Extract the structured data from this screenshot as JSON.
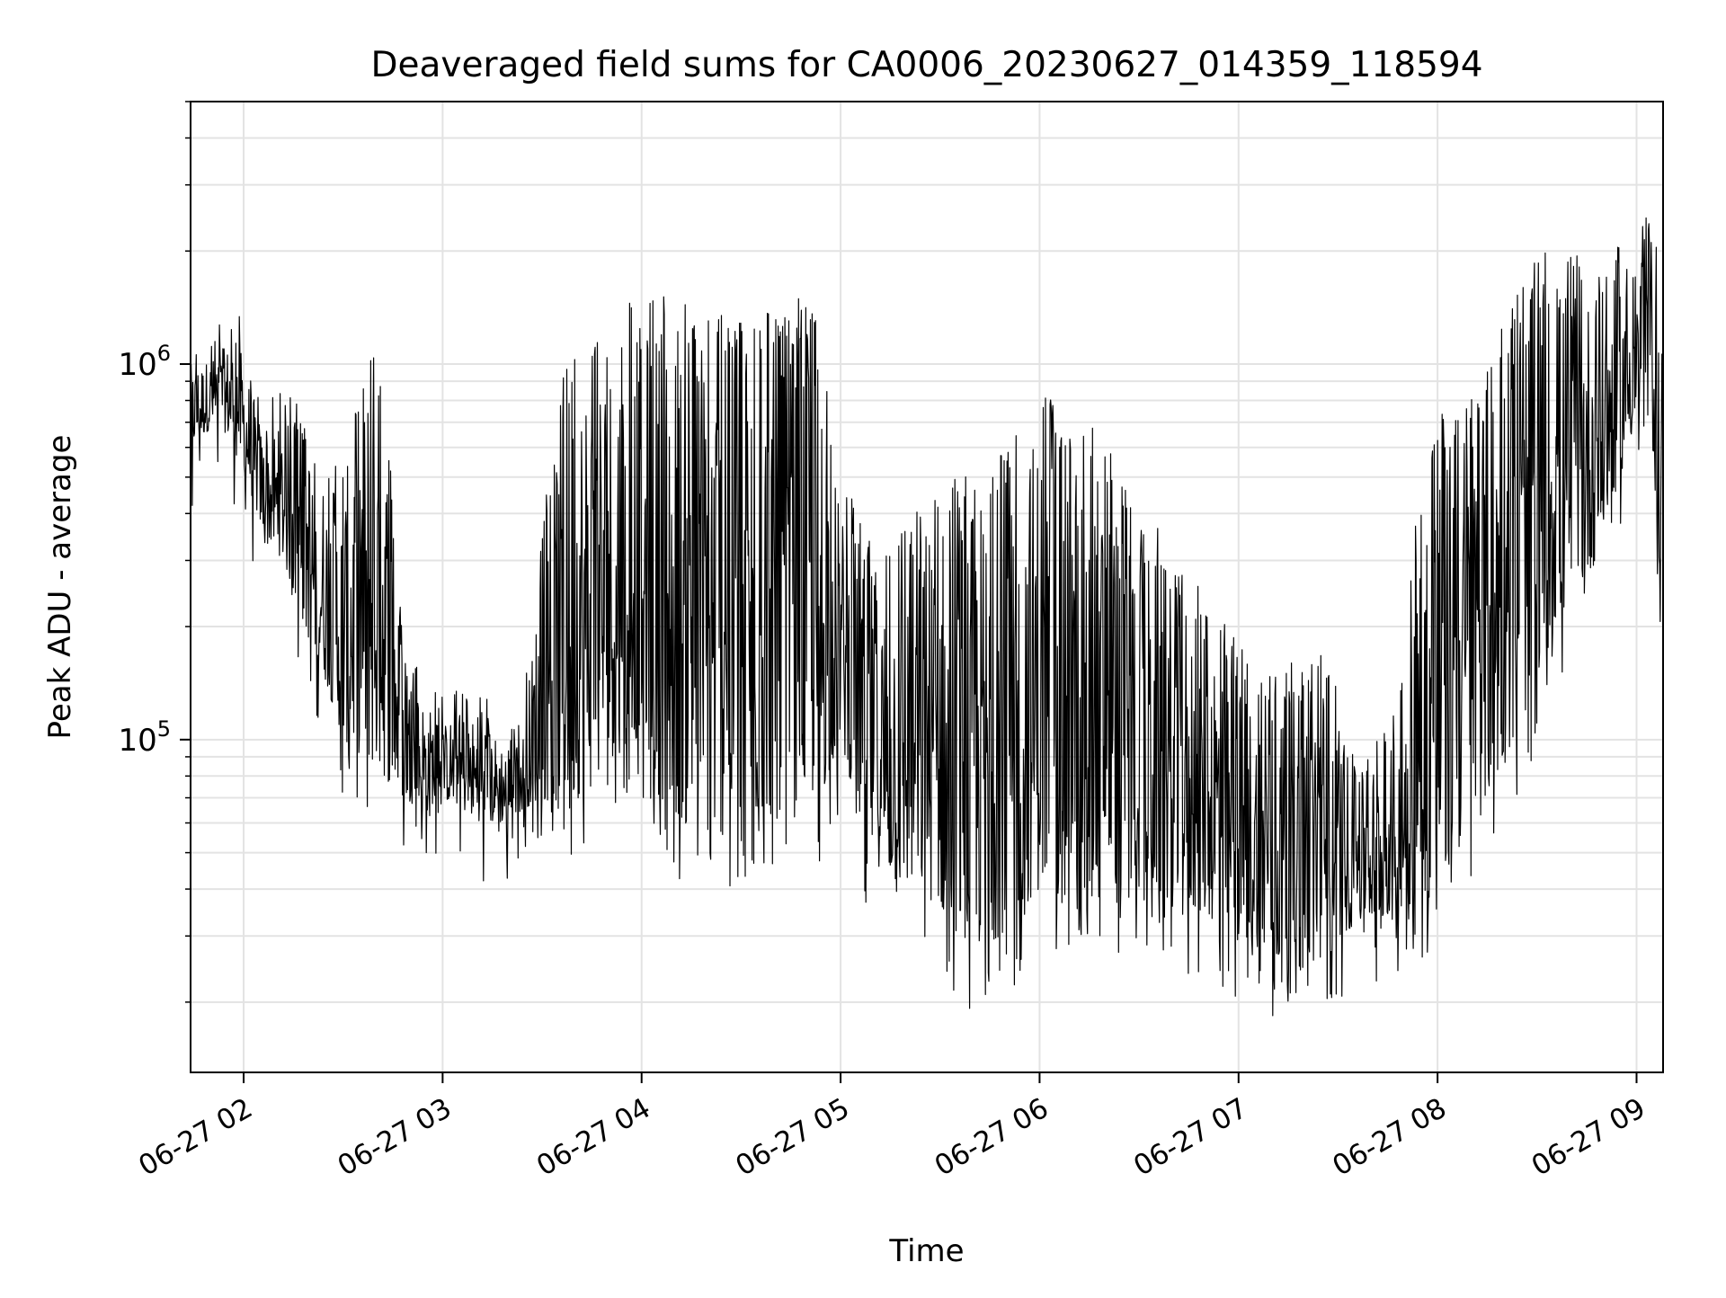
{
  "chart_data": {
    "type": "line",
    "title": "Deaveraged field sums for CA0006_20230627_014359_118594",
    "xlabel": "Time",
    "ylabel": "Peak ADU - average",
    "x_axis": {
      "kind": "datetime",
      "range": [
        "2023-06-27T01:44:00",
        "2023-06-27T09:08:00"
      ],
      "ticks": [
        {
          "value": "2023-06-27T02:00:00",
          "label": "06-27 02"
        },
        {
          "value": "2023-06-27T03:00:00",
          "label": "06-27 03"
        },
        {
          "value": "2023-06-27T04:00:00",
          "label": "06-27 04"
        },
        {
          "value": "2023-06-27T05:00:00",
          "label": "06-27 05"
        },
        {
          "value": "2023-06-27T06:00:00",
          "label": "06-27 06"
        },
        {
          "value": "2023-06-27T07:00:00",
          "label": "06-27 07"
        },
        {
          "value": "2023-06-27T08:00:00",
          "label": "06-27 08"
        },
        {
          "value": "2023-06-27T09:00:00",
          "label": "06-27 09"
        }
      ]
    },
    "y_axis": {
      "scale": "log",
      "range": [
        13000,
        5000000
      ],
      "ticks": [
        {
          "value": 100000,
          "base": "10",
          "exp": "5"
        },
        {
          "value": 1000000,
          "base": "10",
          "exp": "6"
        }
      ]
    },
    "grid": true,
    "series_color": "#000000",
    "series": [
      {
        "x": [
          "2023-06-27T01:44:00",
          "2023-06-27T01:52:00",
          "2023-06-27T01:58:00",
          "2023-06-27T02:06:00",
          "2023-06-27T02:12:00",
          "2023-06-27T02:18:00",
          "2023-06-27T02:24:00",
          "2023-06-27T02:30:00",
          "2023-06-27T02:36:00",
          "2023-06-27T02:42:00",
          "2023-06-27T02:48:00",
          "2023-06-27T02:54:00",
          "2023-06-27T03:00:00",
          "2023-06-27T03:06:00",
          "2023-06-27T03:12:00",
          "2023-06-27T03:18:00",
          "2023-06-27T03:24:00",
          "2023-06-27T03:30:00",
          "2023-06-27T03:36:00",
          "2023-06-27T03:42:00",
          "2023-06-27T03:48:00",
          "2023-06-27T03:54:00",
          "2023-06-27T04:00:00",
          "2023-06-27T04:06:00",
          "2023-06-27T04:12:00",
          "2023-06-27T04:18:00",
          "2023-06-27T04:24:00",
          "2023-06-27T04:30:00",
          "2023-06-27T04:36:00",
          "2023-06-27T04:42:00",
          "2023-06-27T04:48:00",
          "2023-06-27T04:54:00",
          "2023-06-27T05:00:00",
          "2023-06-27T05:06:00",
          "2023-06-27T05:12:00",
          "2023-06-27T05:18:00",
          "2023-06-27T05:24:00",
          "2023-06-27T05:30:00",
          "2023-06-27T05:36:00",
          "2023-06-27T05:42:00",
          "2023-06-27T05:48:00",
          "2023-06-27T05:54:00",
          "2023-06-27T06:00:00",
          "2023-06-27T06:06:00",
          "2023-06-27T06:12:00",
          "2023-06-27T06:18:00",
          "2023-06-27T06:24:00",
          "2023-06-27T06:30:00",
          "2023-06-27T06:36:00",
          "2023-06-27T06:42:00",
          "2023-06-27T06:48:00",
          "2023-06-27T06:54:00",
          "2023-06-27T07:00:00",
          "2023-06-27T07:06:00",
          "2023-06-27T07:12:00",
          "2023-06-27T07:18:00",
          "2023-06-27T07:24:00",
          "2023-06-27T07:30:00",
          "2023-06-27T07:36:00",
          "2023-06-27T07:42:00",
          "2023-06-27T07:48:00",
          "2023-06-27T07:54:00",
          "2023-06-27T08:00:00",
          "2023-06-27T08:06:00",
          "2023-06-27T08:12:00",
          "2023-06-27T08:18:00",
          "2023-06-27T08:24:00",
          "2023-06-27T08:30:00",
          "2023-06-27T08:36:00",
          "2023-06-27T08:42:00",
          "2023-06-27T08:48:00",
          "2023-06-27T08:54:00",
          "2023-06-27T09:00:00",
          "2023-06-27T09:04:00",
          "2023-06-27T09:08:00"
        ],
        "y_high": [
          1000000,
          1050000,
          1200000,
          650000,
          700000,
          700000,
          500000,
          450000,
          1000000,
          900000,
          150000,
          130000,
          110000,
          120000,
          110000,
          100000,
          100000,
          300000,
          850000,
          1000000,
          1100000,
          1200000,
          1300000,
          1300000,
          1200000,
          1150000,
          1150000,
          1100000,
          1150000,
          1200000,
          1250000,
          1100000,
          400000,
          350000,
          250000,
          300000,
          350000,
          400000,
          420000,
          450000,
          500000,
          600000,
          700000,
          650000,
          600000,
          550000,
          450000,
          350000,
          300000,
          250000,
          220000,
          200000,
          150000,
          120000,
          130000,
          140000,
          160000,
          110000,
          80000,
          90000,
          100000,
          400000,
          600000,
          700000,
          800000,
          1000000,
          1300000,
          1600000,
          1700000,
          1600000,
          1500000,
          1700000,
          1600000,
          2400000,
          1200000
        ],
        "y_low": [
          600000,
          700000,
          600000,
          350000,
          300000,
          200000,
          150000,
          100000,
          90000,
          80000,
          70000,
          65000,
          70000,
          65000,
          60000,
          60000,
          65000,
          70000,
          70000,
          70000,
          80000,
          100000,
          110000,
          70000,
          60000,
          55000,
          55000,
          60000,
          60000,
          65000,
          70000,
          70000,
          100000,
          60000,
          45000,
          40000,
          40000,
          35000,
          30000,
          28000,
          30000,
          35000,
          40000,
          40000,
          45000,
          45000,
          40000,
          40000,
          38000,
          35000,
          35000,
          32000,
          30000,
          28000,
          25000,
          24000,
          25000,
          30000,
          32000,
          33000,
          35000,
          38000,
          40000,
          50000,
          60000,
          80000,
          100000,
          150000,
          200000,
          250000,
          300000,
          500000,
          700000,
          800000,
          200000
        ]
      }
    ]
  }
}
